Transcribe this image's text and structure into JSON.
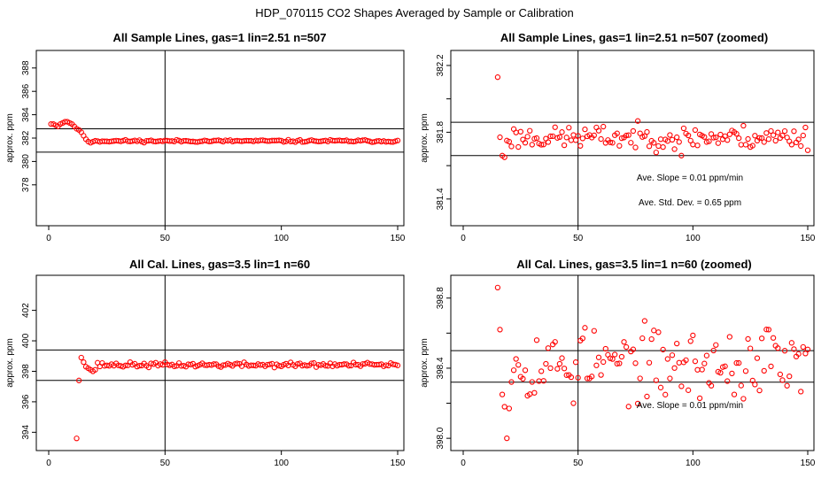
{
  "figure": {
    "title": "HDP_070115  CO2 Shapes Averaged by Sample or Calibration"
  },
  "chart_data": [
    {
      "type": "scatter",
      "title": "All Sample Lines, gas=1 lin=2.51 n=507",
      "xlabel": "",
      "ylabel": "approx. ppm",
      "xlim": [
        0,
        150
      ],
      "ylim": [
        374.5,
        389.5
      ],
      "xticks": [
        0,
        50,
        100,
        150
      ],
      "yticks": [
        378,
        380,
        382,
        384,
        386,
        388
      ],
      "hlines": [
        382.8,
        380.8
      ],
      "vline": 50,
      "marker_color": "#ff0000",
      "annotations": [],
      "generator": {
        "from": 1,
        "to": 150,
        "seed": 11,
        "base": 381.75,
        "noise": 0.05,
        "custom": {
          "1": 383.2,
          "2": 383.2,
          "3": 383.1,
          "4": 383.0,
          "5": 383.2,
          "6": 383.3,
          "7": 383.4,
          "8": 383.4,
          "9": 383.3,
          "10": 383.2,
          "11": 383.0,
          "12": 382.8,
          "13": 382.7,
          "14": 382.5,
          "15": 382.2,
          "16": 381.9,
          "17": 381.7,
          "18": 381.6
        }
      }
    },
    {
      "type": "scatter",
      "title": "All Sample Lines, gas=1 lin=2.51 n=507 (zoomed)",
      "xlabel": "",
      "ylabel": "approx. ppm",
      "xlim": [
        0,
        150
      ],
      "ylim": [
        381.24,
        382.29
      ],
      "xticks": [
        0,
        50,
        100,
        150
      ],
      "yticks": [
        381.4,
        381.6,
        381.8,
        382.0,
        382.2
      ],
      "ytick_labels": [
        "381.4",
        "",
        "381.8",
        "",
        "382.2"
      ],
      "hlines": [
        381.86,
        381.66
      ],
      "vline": 50,
      "marker_color": "#ff0000",
      "annotations": [
        "Ave. Slope =  0.01  ppm/min",
        "Ave. Std. Dev. =  0.65  ppm"
      ],
      "generator": {
        "from": 15,
        "to": 150,
        "seed": 23,
        "base": 381.77,
        "noise": 0.035,
        "custom": {
          "15": 382.13,
          "16": 381.77,
          "17": 381.66,
          "18": 381.65,
          "19": 381.75,
          "40": 381.83,
          "95": 381.66
        }
      }
    },
    {
      "type": "scatter",
      "title": "All Cal. Lines, gas=3.5 lin=1 n=60",
      "xlabel": "",
      "ylabel": "approx. ppm",
      "xlim": [
        0,
        150
      ],
      "ylim": [
        392.8,
        404.3
      ],
      "xticks": [
        0,
        50,
        100,
        150
      ],
      "yticks": [
        394,
        396,
        398,
        400,
        402
      ],
      "hlines": [
        399.4,
        397.4
      ],
      "vline": 50,
      "marker_color": "#ff0000",
      "annotations": [],
      "generator": {
        "from": 12,
        "to": 150,
        "seed": 37,
        "base": 398.42,
        "noise": 0.08,
        "custom": {
          "12": 393.6,
          "13": 397.4,
          "14": 398.9,
          "15": 398.6,
          "16": 398.3,
          "17": 398.2,
          "18": 398.1,
          "19": 398.0,
          "20": 398.1
        }
      }
    },
    {
      "type": "scatter",
      "title": "All Cal. Lines, gas=3.5 lin=1 n=60 (zoomed)",
      "xlabel": "",
      "ylabel": "approx. ppm",
      "xlim": [
        0,
        150
      ],
      "ylim": [
        397.93,
        398.93
      ],
      "xticks": [
        0,
        50,
        100,
        150
      ],
      "yticks": [
        398.0,
        398.2,
        398.4,
        398.6,
        398.8
      ],
      "ytick_labels": [
        "398.0",
        "",
        "398.4",
        "",
        "398.8"
      ],
      "hlines": [
        398.5,
        398.32
      ],
      "vline": 50,
      "marker_color": "#ff0000",
      "annotations": [
        "Ave. Slope =  0.01  ppm/min"
      ],
      "generator": {
        "from": 15,
        "to": 150,
        "seed": 53,
        "base": 398.42,
        "noise": 0.1,
        "custom": {
          "15": 398.86,
          "16": 398.62,
          "17": 398.25,
          "18": 398.18,
          "19": 398.0,
          "20": 398.17,
          "32": 398.56,
          "48": 398.2,
          "52": 398.57,
          "70": 398.55,
          "108": 398.3,
          "118": 398.25,
          "130": 398.57,
          "133": 398.62
        }
      }
    }
  ]
}
